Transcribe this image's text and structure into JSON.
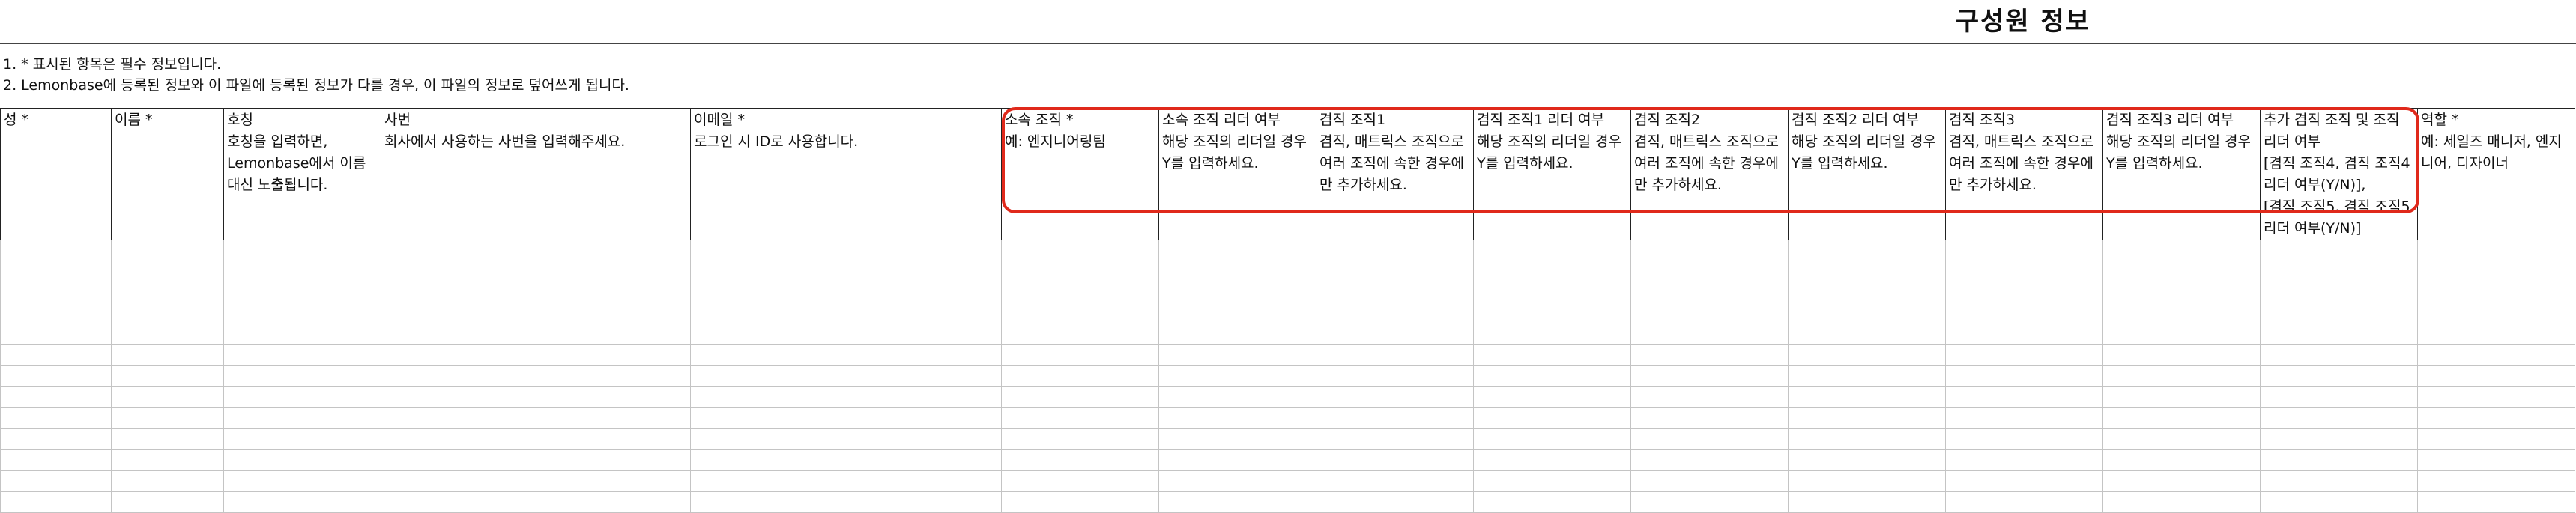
{
  "sheet_title": "구성원 정보",
  "notes": [
    "1. * 표시된 항목은 필수 정보입니다.",
    "2. Lemonbase에 등록된 정보와 이 파일에 등록된 정보가 다를 경우, 이 파일의 정보로 덮어쓰게 됩니다."
  ],
  "columns": [
    {
      "key": "last-name",
      "header": "성 *"
    },
    {
      "key": "first-name",
      "header": "이름 *"
    },
    {
      "key": "nickname",
      "header": "호칭\n호칭을 입력하면,\nLemonbase에서 이름 대신 노출됩니다."
    },
    {
      "key": "employee-id",
      "header": "사번\n회사에서 사용하는 사번을 입력해주세요."
    },
    {
      "key": "email",
      "header": "이메일 *\n로그인 시 ID로 사용합니다."
    },
    {
      "key": "org",
      "header": "소속 조직 *\n예: 엔지니어링팀"
    },
    {
      "key": "org-leader",
      "header": "소속 조직 리더 여부\n해당 조직의 리더일 경우 Y를 입력하세요."
    },
    {
      "key": "concurrent-org-1",
      "header": "겸직 조직1\n겸직, 매트릭스 조직으로 여러 조직에 속한 경우에만 추가하세요."
    },
    {
      "key": "concurrent-org-1-leader",
      "header": "겸직 조직1 리더 여부\n해당 조직의 리더일 경우 Y를 입력하세요."
    },
    {
      "key": "concurrent-org-2",
      "header": "겸직 조직2\n겸직, 매트릭스 조직으로 여러 조직에 속한 경우에만 추가하세요."
    },
    {
      "key": "concurrent-org-2-leader",
      "header": "겸직 조직2 리더 여부\n해당 조직의 리더일 경우 Y를 입력하세요."
    },
    {
      "key": "concurrent-org-3",
      "header": "겸직 조직3\n겸직, 매트릭스 조직으로 여러 조직에 속한 경우에만 추가하세요."
    },
    {
      "key": "concurrent-org-3-leader",
      "header": "겸직 조직3 리더 여부\n해당 조직의 리더일 경우 Y를 입력하세요."
    },
    {
      "key": "additional-concurrent-org",
      "header": "추가 겸직 조직 및 조직 리더 여부\n[겸직 조직4, 겸직 조직4 리더 여부(Y/N)],\n[겸직 조직5, 겸직 조직5 리더 여부(Y/N)]"
    },
    {
      "key": "role",
      "header": "역할 *\n예: 세일즈 매니저, 엔지니어, 디자이너"
    }
  ],
  "empty_rows": 13,
  "colors": {
    "highlight_border": "#e0291b",
    "header_border": "#222222",
    "grid": "#c4c4c4"
  }
}
